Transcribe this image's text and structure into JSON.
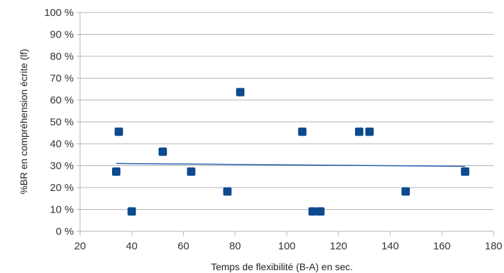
{
  "chart_data": {
    "type": "scatter",
    "xlabel": "Temps de flexibilité (B-A) en sec.",
    "ylabel": "%BR en compréhension écrite (lf)",
    "xlim": [
      20,
      180
    ],
    "ylim": [
      0,
      100
    ],
    "x_ticks": [
      20,
      40,
      60,
      80,
      100,
      120,
      140,
      160,
      180
    ],
    "y_ticks": [
      0,
      10,
      20,
      30,
      40,
      50,
      60,
      70,
      80,
      90,
      100
    ],
    "y_tick_labels": [
      "0 %",
      "10 %",
      "20 %",
      "30 %",
      "40 %",
      "50 %",
      "60 %",
      "70 %",
      "80 %",
      "90 %",
      "100 %"
    ],
    "grid": "horizontal",
    "legend": "none",
    "marker": "square",
    "color": "#0d4a8f",
    "trendline_color": "#1f5ea8",
    "series": [
      {
        "points": [
          {
            "x": 34,
            "y": 27.3
          },
          {
            "x": 35,
            "y": 45.5
          },
          {
            "x": 40,
            "y": 9.1
          },
          {
            "x": 52,
            "y": 36.4
          },
          {
            "x": 63,
            "y": 27.3
          },
          {
            "x": 77,
            "y": 18.2
          },
          {
            "x": 82,
            "y": 63.6
          },
          {
            "x": 106,
            "y": 45.5
          },
          {
            "x": 110,
            "y": 9.1
          },
          {
            "x": 113,
            "y": 9.1
          },
          {
            "x": 128,
            "y": 45.5
          },
          {
            "x": 132,
            "y": 45.5
          },
          {
            "x": 146,
            "y": 18.2
          },
          {
            "x": 169,
            "y": 27.3
          }
        ]
      }
    ],
    "trendline": {
      "type": "linear",
      "points": [
        {
          "x": 34,
          "y": 31
        },
        {
          "x": 169,
          "y": 29.7
        }
      ]
    }
  }
}
